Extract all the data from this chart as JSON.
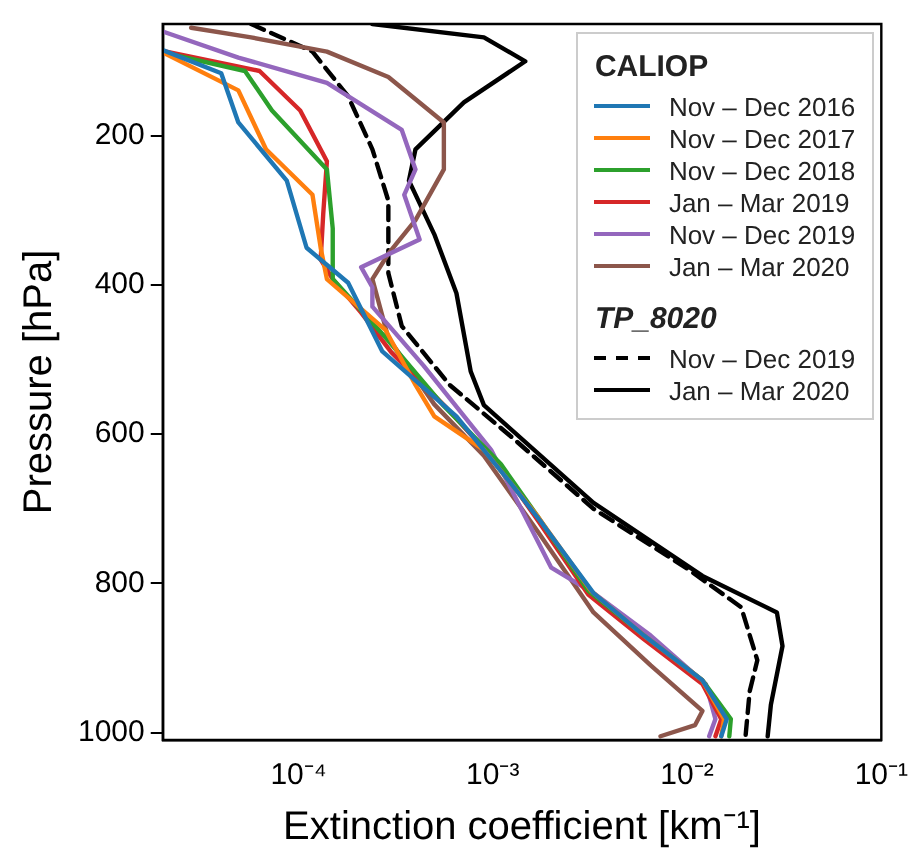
{
  "chart_data": {
    "type": "line",
    "xlabel": "Extinction coefficient [km⁻¹]",
    "ylabel": "Pressure [hPa]",
    "legend_title": "CALIOP",
    "annotations": [
      "TP_8020"
    ],
    "log": "x",
    "grid": false,
    "legend": "top right",
    "marker": "none",
    "xlim": [
      2e-05,
      0.1
    ],
    "xticks": [
      {
        "value": 0.0001,
        "label": "10⁻⁴"
      },
      {
        "value": 0.001,
        "label": "10⁻³"
      },
      {
        "value": 0.01,
        "label": "10⁻²"
      },
      {
        "value": 0.1,
        "label": "10⁻¹"
      }
    ],
    "ylim": [
      1010,
      50
    ],
    "yticks": [
      200,
      400,
      600,
      800,
      1000
    ],
    "series": [
      {
        "name": "Nov – Dec 2016",
        "color": "#1f77b4",
        "x": [
          2e-05,
          4e-05,
          4.9e-05,
          8.7e-05,
          0.00011,
          0.00018,
          0.00027,
          0.00065,
          0.00124,
          0.0018,
          0.0033,
          0.006,
          0.012,
          0.016,
          0.015
        ],
        "values": [
          85,
          116,
          182,
          260,
          350,
          397,
          489,
          576,
          666,
          720,
          813,
          870,
          930,
          982,
          1005
        ]
      },
      {
        "name": "Nov – Dec 2017",
        "color": "#ff7f0e",
        "x": [
          2e-05,
          4.9e-05,
          6.8e-05,
          0.000118,
          0.00013,
          0.00014,
          0.00028,
          0.0004,
          0.0005,
          0.0009,
          0.0017,
          0.0032,
          0.006,
          0.012,
          0.0155,
          0.015
        ],
        "values": [
          88,
          139,
          218,
          279,
          350,
          392,
          460,
          534,
          576,
          621,
          710,
          810,
          870,
          930,
          982,
          1005
        ]
      },
      {
        "name": "Nov – Dec 2018",
        "color": "#2ca02c",
        "x": [
          2e-05,
          5.3e-05,
          7.3e-05,
          0.00014,
          0.00015,
          0.00015,
          0.00028,
          0.00055,
          0.0011,
          0.0017,
          0.0031,
          0.006,
          0.012,
          0.0168,
          0.0165
        ],
        "values": [
          88,
          113,
          166,
          245,
          324,
          392,
          470,
          560,
          640,
          710,
          810,
          870,
          930,
          982,
          1005
        ]
      },
      {
        "name": "Jan – Mar 2019",
        "color": "#d62728",
        "x": [
          2e-05,
          6.3e-05,
          0.000102,
          0.00014,
          0.000134,
          0.00013,
          0.00015,
          0.00021,
          0.0003,
          0.00058,
          0.0011,
          0.0017,
          0.0031,
          0.006,
          0.012,
          0.015,
          0.014
        ],
        "values": [
          86,
          113,
          166,
          234,
          305,
          366,
          392,
          437,
          490,
          565,
          645,
          715,
          815,
          875,
          935,
          982,
          1005
        ]
      },
      {
        "name": "Nov – Dec 2019",
        "color": "#9467bd",
        "x": [
          2e-05,
          4.9e-05,
          0.00014,
          0.00034,
          0.0004,
          0.00035,
          0.00042,
          0.00021,
          0.00024,
          0.00024,
          0.00044,
          0.00098,
          0.002,
          0.0033,
          0.0065,
          0.0125,
          0.014,
          0.013
        ],
        "values": [
          60,
          95,
          129,
          192,
          245,
          279,
          339,
          376,
          403,
          429,
          508,
          621,
          779,
          813,
          870,
          935,
          982,
          1005
        ]
      },
      {
        "name": "Jan – Mar 2020",
        "color": "#8c564b",
        "x": [
          2.8e-05,
          5.7e-05,
          0.00014,
          0.00029,
          0.00056,
          0.00056,
          0.0004,
          0.00029,
          0.00024,
          0.00029,
          0.0005,
          0.0009,
          0.0017,
          0.0033,
          0.0065,
          0.012,
          0.011,
          0.0073
        ],
        "values": [
          55,
          68,
          87,
          121,
          182,
          245,
          313,
          358,
          392,
          471,
          560,
          629,
          730,
          839,
          910,
          971,
          990,
          1005
        ]
      },
      {
        "name": "Nov – Dec 2019",
        "color": "#000000",
        "line_style": "dashed",
        "x": [
          5.7e-05,
          0.000118,
          0.00018,
          0.00024,
          0.00029,
          0.00029,
          0.00034,
          0.0006,
          0.00124,
          0.0033,
          0.01,
          0.019,
          0.023,
          0.021,
          0.02
        ],
        "values": [
          50,
          87,
          147,
          218,
          287,
          384,
          455,
          534,
          603,
          700,
          780,
          832,
          903,
          945,
          1005
        ]
      },
      {
        "name": "Jan – Mar 2020",
        "color": "#000000",
        "x": [
          0.00024,
          0.0009,
          0.00147,
          0.00071,
          0.0004,
          0.00037,
          0.0005,
          0.00065,
          0.00077,
          0.0009,
          0.0033,
          0.012,
          0.029,
          0.031,
          0.027,
          0.026
        ],
        "values": [
          50,
          68,
          100,
          155,
          218,
          260,
          332,
          411,
          516,
          561,
          692,
          790,
          839,
          884,
          963,
          1005
        ]
      }
    ]
  }
}
